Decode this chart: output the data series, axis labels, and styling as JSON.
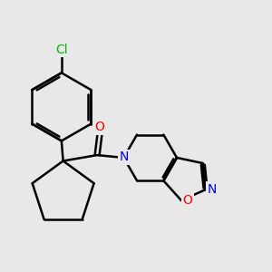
{
  "background_color": "#e8e8e8",
  "bond_color": "#000000",
  "bond_width": 1.8,
  "atom_colors": {
    "Cl": "#00bb00",
    "O_carbonyl": "#ff0000",
    "N": "#0000ee",
    "O_ring": "#ff0000"
  },
  "font_size_atoms": 10,
  "figsize": [
    3.0,
    3.0
  ],
  "dpi": 100
}
